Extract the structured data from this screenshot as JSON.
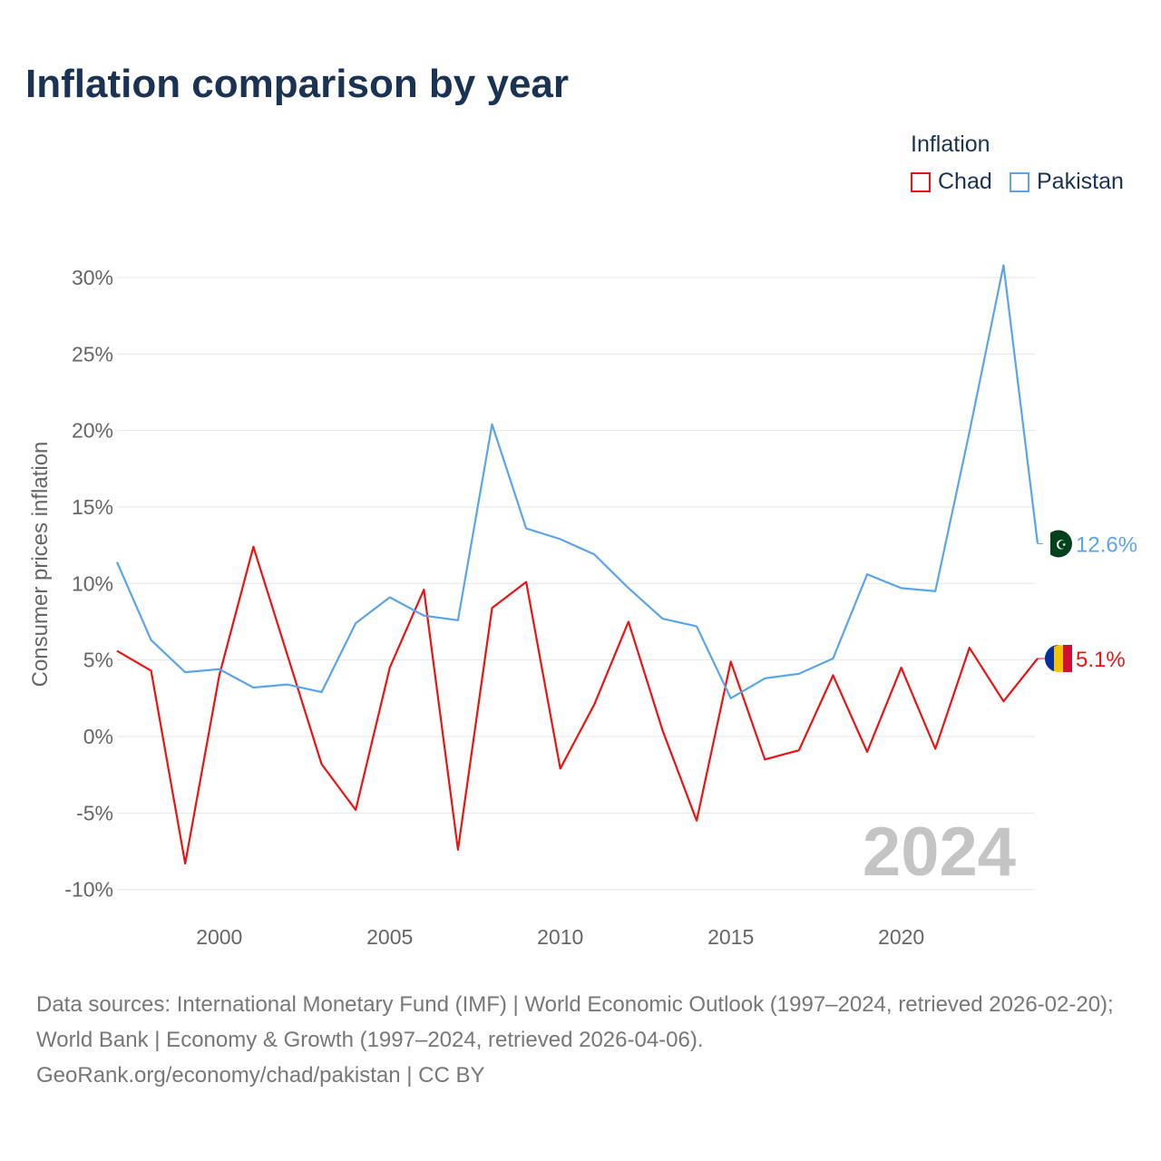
{
  "title": "Inflation comparison by year",
  "legend": {
    "title": "Inflation",
    "items": [
      {
        "label": "Chad",
        "color": "#ee1111"
      },
      {
        "label": "Pakistan",
        "color": "#5aa4ea"
      }
    ]
  },
  "year_label": "2024",
  "footer": {
    "sources": "Data sources: International Monetary Fund (IMF) | World Economic Outlook (1997–2024, retrieved 2026-02-20); World Bank | Economy & Growth (1997–2024, retrieved 2026-04-06).",
    "credit": "GeoRank.org/economy/chad/pakistan | CC BY"
  },
  "chart_data": {
    "type": "line",
    "title": "Inflation comparison by year",
    "ylabel": "Consumer prices inflation",
    "xlabel": "",
    "xlim": [
      1997,
      2024
    ],
    "ylim": [
      -11,
      32
    ],
    "yticks": [
      -10,
      -5,
      0,
      5,
      10,
      15,
      20,
      25,
      30
    ],
    "ytick_labels": [
      "-10%",
      "-5%",
      "0%",
      "5%",
      "10%",
      "15%",
      "20%",
      "25%",
      "30%"
    ],
    "xticks": [
      2000,
      2005,
      2010,
      2015,
      2020
    ],
    "xtick_labels": [
      "2000",
      "2005",
      "2010",
      "2015",
      "2020"
    ],
    "x": [
      1997,
      1998,
      1999,
      2000,
      2001,
      2002,
      2003,
      2004,
      2005,
      2006,
      2007,
      2008,
      2009,
      2010,
      2011,
      2012,
      2013,
      2014,
      2015,
      2016,
      2017,
      2018,
      2019,
      2020,
      2021,
      2022,
      2023,
      2024
    ],
    "series": [
      {
        "name": "Chad",
        "color": "#ee1111",
        "end_label": "5.1%",
        "values": [
          5.6,
          4.3,
          -8.3,
          4.0,
          12.4,
          5.3,
          -1.8,
          -4.8,
          4.5,
          9.6,
          -7.4,
          8.4,
          10.1,
          -2.1,
          2.1,
          7.5,
          0.4,
          -5.5,
          4.9,
          -1.5,
          -0.9,
          4.0,
          -1.0,
          4.5,
          -0.8,
          5.8,
          2.3,
          5.1
        ]
      },
      {
        "name": "Pakistan",
        "color": "#5aa4ea",
        "end_label": "12.6%",
        "values": [
          11.4,
          6.3,
          4.2,
          4.4,
          3.2,
          3.4,
          2.9,
          7.4,
          9.1,
          7.9,
          7.6,
          20.4,
          13.6,
          12.9,
          11.9,
          9.7,
          7.7,
          7.2,
          2.5,
          3.8,
          4.1,
          5.1,
          10.6,
          9.7,
          9.5,
          19.9,
          30.8,
          12.6
        ]
      }
    ],
    "grid": true,
    "legend_position": "top-right"
  }
}
